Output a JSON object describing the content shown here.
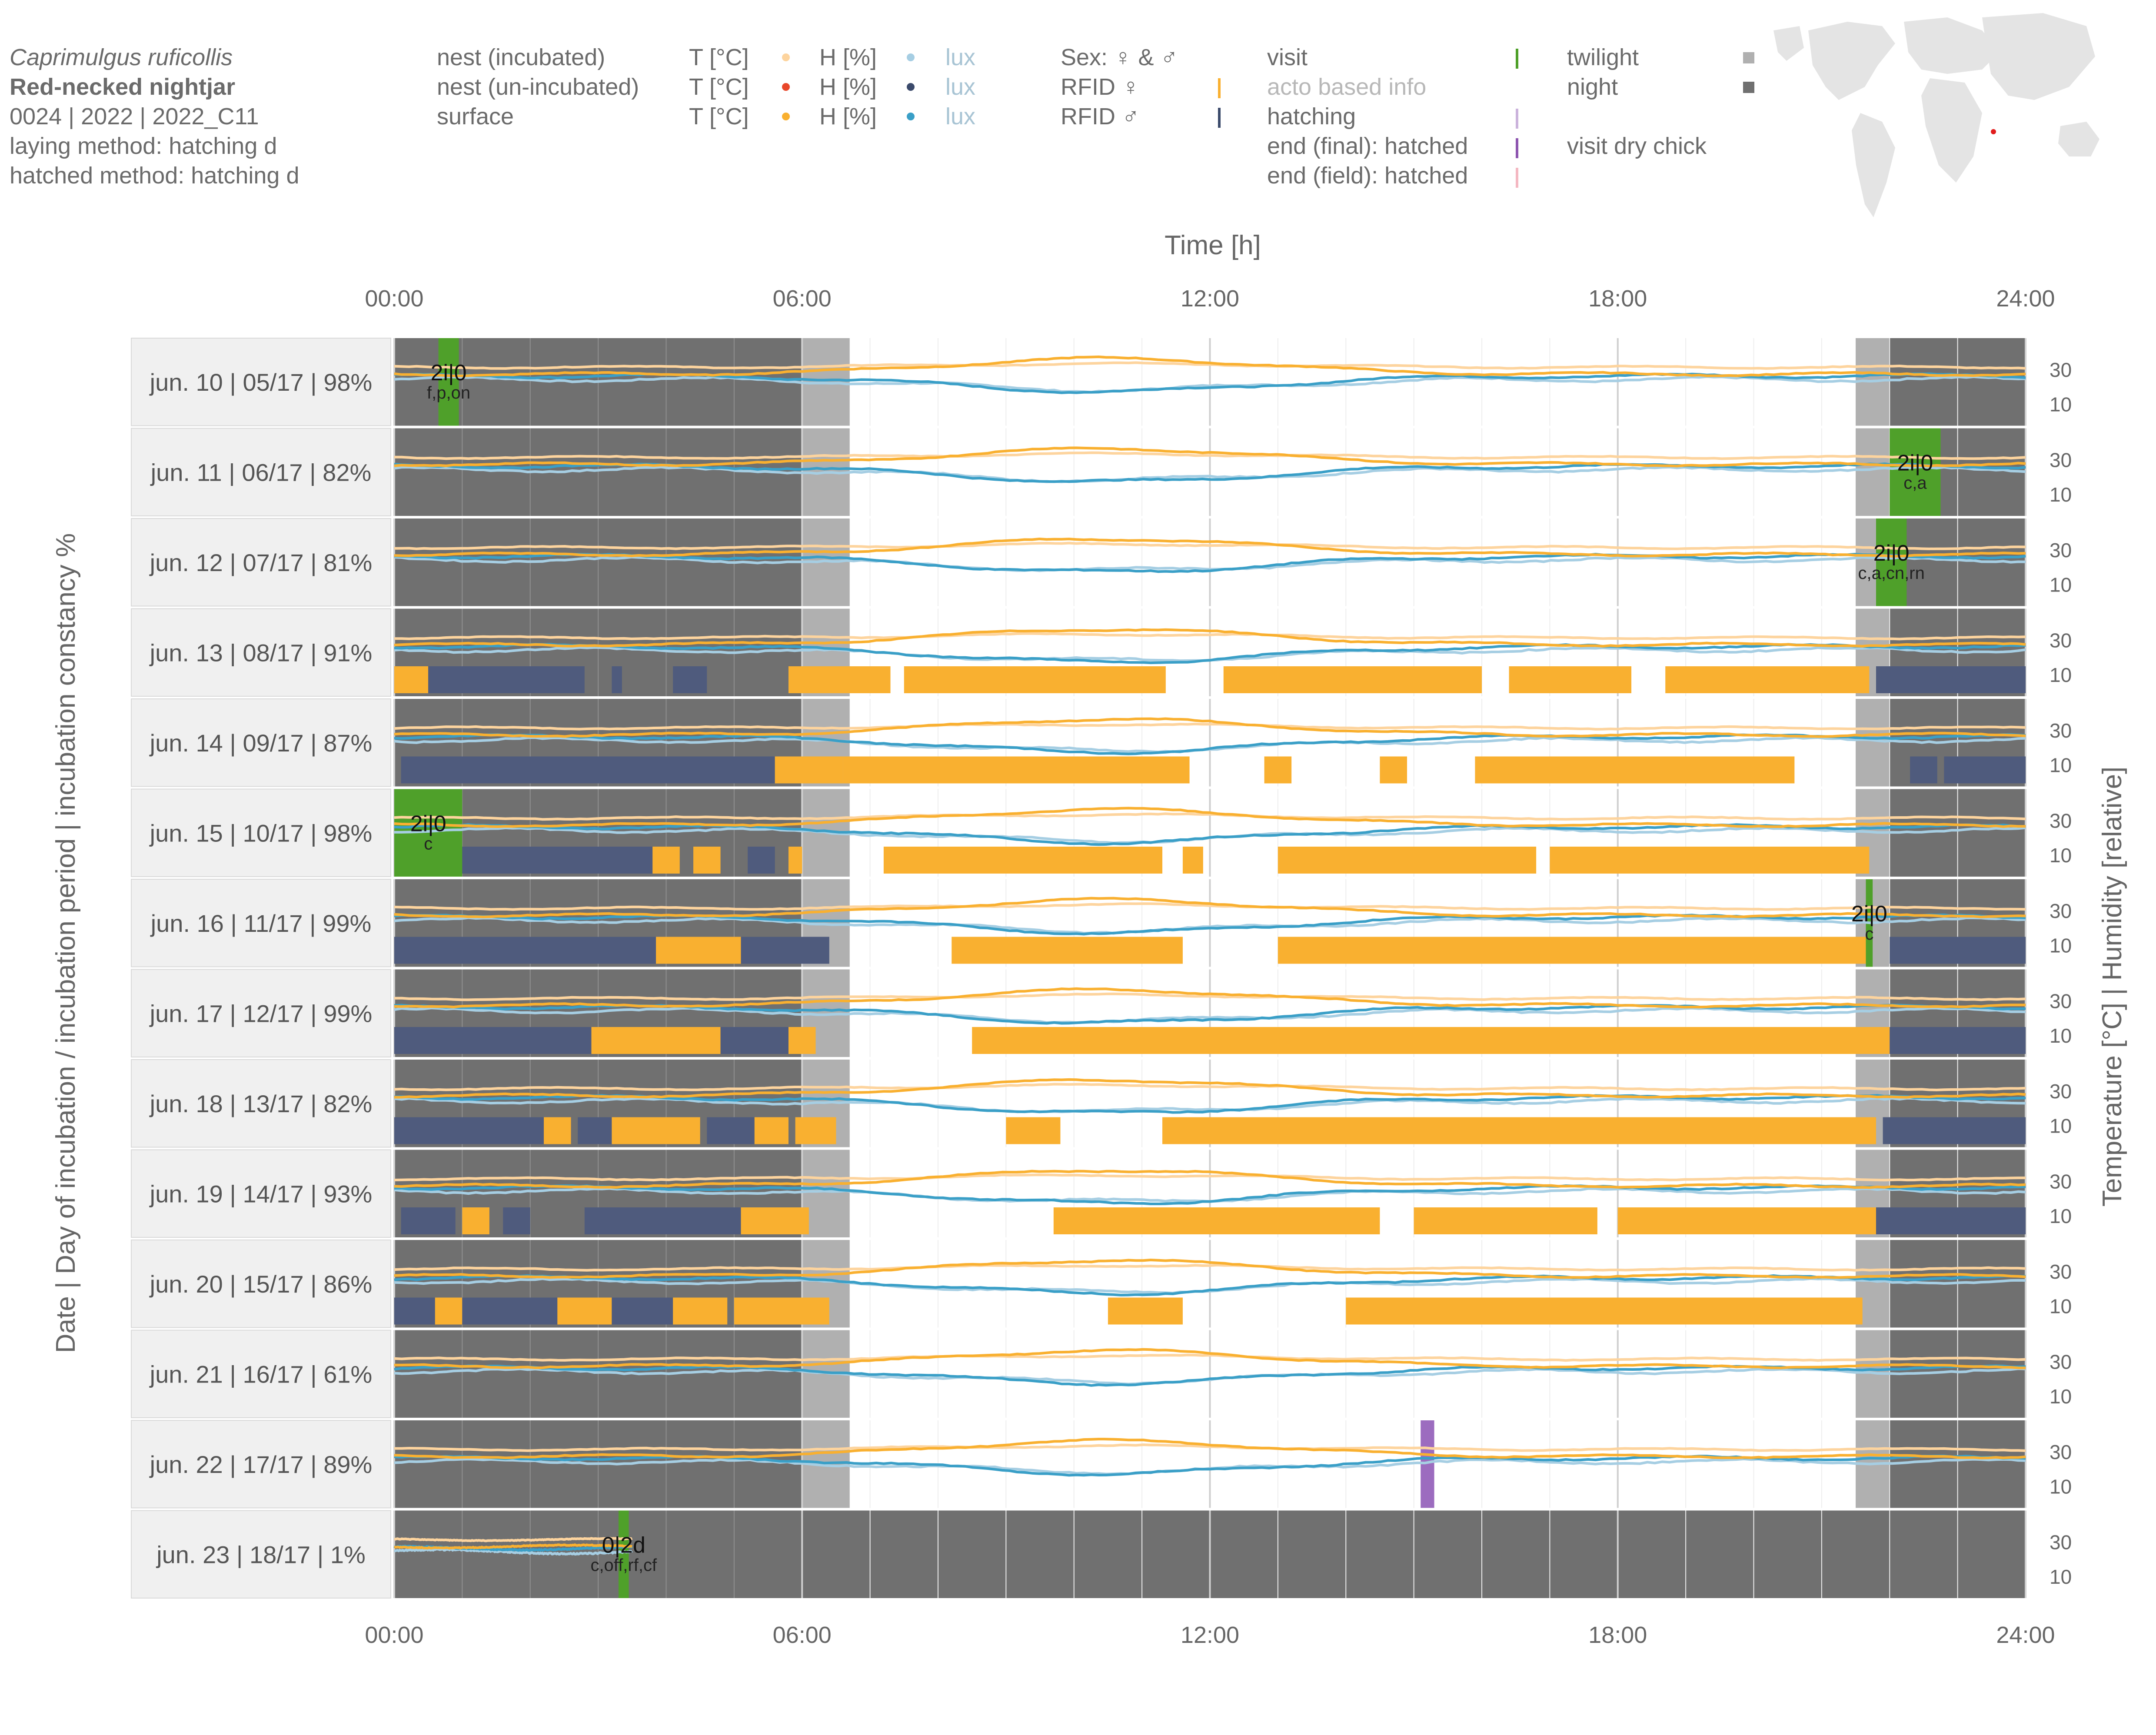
{
  "header": {
    "species_latin": "Caprimulgus ruficollis",
    "species_common": "Red-necked nightjar",
    "ids": "0024 | 2022 | 2022_C11",
    "laying_method": "laying method: hatching d",
    "hatched_method": "hatched method: hatching d"
  },
  "legend": {
    "sensors": [
      {
        "label": "nest (incubated)",
        "t": "T [°C]",
        "h": "H [%]",
        "l": "lux",
        "t_color": "#fdd49e",
        "h_color": "#a6cee3",
        "l_color": "#a6cee3"
      },
      {
        "label": "nest (un-incubated)",
        "t": "T [°C]",
        "h": "H [%]",
        "l": "lux",
        "t_color": "#e8472a",
        "h_color": "#3b4a6b",
        "l_color": "#3b4a6b"
      },
      {
        "label": "surface",
        "t": "T [°C]",
        "h": "H [%]",
        "l": "lux",
        "t_color": "#f9b030",
        "h_color": "#3a9fc7",
        "l_color": "#3a9fc7"
      }
    ],
    "sex": {
      "title": "Sex: ♀ & ♂",
      "rfid_f": "RFID ♀",
      "rfid_m": "RFID ♂",
      "color_f": "#f9b030",
      "color_m": "#3b4a6b"
    },
    "events": [
      {
        "label": "visit",
        "color": "#4fa02a"
      },
      {
        "label": "acto based info",
        "color": "#cccccc"
      },
      {
        "label": "hatching",
        "color": "#cbb3dc"
      },
      {
        "label": "end (final): hatched",
        "color": "#8e56b0"
      },
      {
        "label": "end (field): hatched",
        "color": "#f4b8c2"
      }
    ],
    "light": [
      {
        "label": "twilight",
        "color": "#b0b0b0"
      },
      {
        "label": "night",
        "color": "#707070"
      }
    ],
    "visit_dry_chick": "visit dry chick"
  },
  "chart_data": {
    "type": "line",
    "title": "Time [h]",
    "x_ticks": [
      "00:00",
      "06:00",
      "12:00",
      "18:00",
      "24:00"
    ],
    "xlim": [
      0,
      24
    ],
    "ylabel_left": "Date | Day of incubation / incubation period | incubation constancy %",
    "ylabel_right": "Temperature [°C]   |   Humidity [relative]",
    "ylim": [
      0,
      45
    ],
    "y_ticks": [
      "30",
      "10"
    ],
    "twilight_windows": [
      [
        6.0,
        6.7
      ],
      [
        21.5,
        22.0
      ]
    ],
    "rows": [
      {
        "label": "jun. 10 | 05/17 | 98%",
        "visit": {
          "start": 0.65,
          "end": 0.95,
          "code": "2i|0",
          "sub": "f,p,on"
        },
        "bars": [],
        "night_end": 6.2
      },
      {
        "label": "jun. 11 | 06/17 | 82%",
        "visit": {
          "start": 22.0,
          "end": 22.75,
          "code": "2i|0",
          "sub": "c,a"
        },
        "bars": []
      },
      {
        "label": "jun. 12 | 07/17 | 81%",
        "visit": {
          "start": 21.8,
          "end": 22.25,
          "code": "2i|0",
          "sub": "c,a,cn,rn"
        },
        "bars": []
      },
      {
        "label": "jun. 13 | 08/17 | 91%",
        "bars": [
          {
            "s": 0.0,
            "e": 0.5,
            "c": "f"
          },
          {
            "s": 0.5,
            "e": 2.8,
            "c": "m"
          },
          {
            "s": 3.2,
            "e": 3.35,
            "c": "m"
          },
          {
            "s": 4.1,
            "e": 4.6,
            "c": "m"
          },
          {
            "s": 5.8,
            "e": 7.3,
            "c": "f"
          },
          {
            "s": 7.5,
            "e": 11.35,
            "c": "f"
          },
          {
            "s": 12.2,
            "e": 16.0,
            "c": "f"
          },
          {
            "s": 16.4,
            "e": 18.2,
            "c": "f"
          },
          {
            "s": 18.7,
            "e": 21.7,
            "c": "f"
          },
          {
            "s": 21.8,
            "e": 24.0,
            "c": "m"
          }
        ]
      },
      {
        "label": "jun. 14 | 09/17 | 87%",
        "bars": [
          {
            "s": 0.1,
            "e": 5.6,
            "c": "m"
          },
          {
            "s": 5.6,
            "e": 6.6,
            "c": "f"
          },
          {
            "s": 6.6,
            "e": 11.7,
            "c": "f"
          },
          {
            "s": 12.8,
            "e": 13.2,
            "c": "f"
          },
          {
            "s": 14.5,
            "e": 14.9,
            "c": "f"
          },
          {
            "s": 15.9,
            "e": 20.6,
            "c": "f"
          },
          {
            "s": 22.3,
            "e": 22.7,
            "c": "m"
          },
          {
            "s": 22.8,
            "e": 24.0,
            "c": "m"
          }
        ]
      },
      {
        "label": "jun. 15 | 10/17 | 98%",
        "visit": {
          "start": 0.0,
          "end": 1.0,
          "code": "2i|0",
          "sub": "c"
        },
        "bars": [
          {
            "s": 0.0,
            "e": 3.8,
            "c": "m"
          },
          {
            "s": 3.8,
            "e": 4.2,
            "c": "f"
          },
          {
            "s": 4.4,
            "e": 4.8,
            "c": "f"
          },
          {
            "s": 5.2,
            "e": 5.6,
            "c": "m"
          },
          {
            "s": 5.8,
            "e": 6.0,
            "c": "f"
          },
          {
            "s": 7.2,
            "e": 11.3,
            "c": "f"
          },
          {
            "s": 11.6,
            "e": 11.9,
            "c": "f"
          },
          {
            "s": 13.0,
            "e": 16.8,
            "c": "f"
          },
          {
            "s": 17.0,
            "e": 21.7,
            "c": "f"
          }
        ]
      },
      {
        "label": "jun. 16 | 11/17 | 99%",
        "visit": {
          "start": 21.65,
          "end": 21.75,
          "code": "2i|0",
          "sub": "c"
        },
        "bars": [
          {
            "s": 0.0,
            "e": 3.85,
            "c": "m"
          },
          {
            "s": 3.85,
            "e": 5.1,
            "c": "f"
          },
          {
            "s": 5.1,
            "e": 6.4,
            "c": "m"
          },
          {
            "s": 8.2,
            "e": 11.6,
            "c": "f"
          },
          {
            "s": 13.0,
            "e": 21.7,
            "c": "f"
          },
          {
            "s": 22.0,
            "e": 24.0,
            "c": "m"
          }
        ]
      },
      {
        "label": "jun. 17 | 12/17 | 99%",
        "bars": [
          {
            "s": 0.0,
            "e": 2.9,
            "c": "m"
          },
          {
            "s": 2.9,
            "e": 4.8,
            "c": "f"
          },
          {
            "s": 4.8,
            "e": 5.8,
            "c": "m"
          },
          {
            "s": 5.8,
            "e": 6.2,
            "c": "f"
          },
          {
            "s": 8.5,
            "e": 22.0,
            "c": "f"
          },
          {
            "s": 22.0,
            "e": 24.0,
            "c": "m"
          }
        ]
      },
      {
        "label": "jun. 18 | 13/17 | 82%",
        "bars": [
          {
            "s": 0.0,
            "e": 2.2,
            "c": "m"
          },
          {
            "s": 2.2,
            "e": 2.6,
            "c": "f"
          },
          {
            "s": 2.7,
            "e": 3.2,
            "c": "m"
          },
          {
            "s": 3.2,
            "e": 4.5,
            "c": "f"
          },
          {
            "s": 4.6,
            "e": 5.3,
            "c": "m"
          },
          {
            "s": 5.3,
            "e": 5.8,
            "c": "f"
          },
          {
            "s": 5.9,
            "e": 6.5,
            "c": "f"
          },
          {
            "s": 9.0,
            "e": 9.8,
            "c": "f"
          },
          {
            "s": 11.3,
            "e": 21.8,
            "c": "f"
          },
          {
            "s": 21.9,
            "e": 24.0,
            "c": "m"
          }
        ]
      },
      {
        "label": "jun. 19 | 14/17 | 93%",
        "bars": [
          {
            "s": 0.1,
            "e": 0.9,
            "c": "m"
          },
          {
            "s": 1.0,
            "e": 1.4,
            "c": "f"
          },
          {
            "s": 1.6,
            "e": 2.0,
            "c": "m"
          },
          {
            "s": 2.8,
            "e": 5.1,
            "c": "m"
          },
          {
            "s": 5.1,
            "e": 6.1,
            "c": "f"
          },
          {
            "s": 9.7,
            "e": 14.5,
            "c": "f"
          },
          {
            "s": 15.0,
            "e": 17.7,
            "c": "f"
          },
          {
            "s": 18.0,
            "e": 21.8,
            "c": "f"
          },
          {
            "s": 21.8,
            "e": 24.0,
            "c": "m"
          }
        ]
      },
      {
        "label": "jun. 20 | 15/17 | 86%",
        "bars": [
          {
            "s": 0.0,
            "e": 0.6,
            "c": "m"
          },
          {
            "s": 0.6,
            "e": 1.0,
            "c": "f"
          },
          {
            "s": 1.0,
            "e": 2.4,
            "c": "m"
          },
          {
            "s": 2.4,
            "e": 3.2,
            "c": "f"
          },
          {
            "s": 3.2,
            "e": 4.1,
            "c": "m"
          },
          {
            "s": 4.1,
            "e": 4.9,
            "c": "f"
          },
          {
            "s": 5.0,
            "e": 6.4,
            "c": "f"
          },
          {
            "s": 10.5,
            "e": 11.6,
            "c": "f"
          },
          {
            "s": 14.0,
            "e": 21.6,
            "c": "f"
          }
        ]
      },
      {
        "label": "jun. 21 | 16/17 | 61%",
        "bars": []
      },
      {
        "label": "jun. 22 | 17/17 | 89%",
        "hatch_mark": {
          "start": 15.1,
          "end": 15.3
        },
        "bars": []
      },
      {
        "label": "jun. 23 | 18/17 | 1%",
        "visit": {
          "start": 3.3,
          "end": 3.45,
          "code": "0|2d",
          "sub": "c,off,rf,cf"
        },
        "bars": [],
        "night_end": 24.0,
        "data_end": 3.5
      }
    ]
  }
}
